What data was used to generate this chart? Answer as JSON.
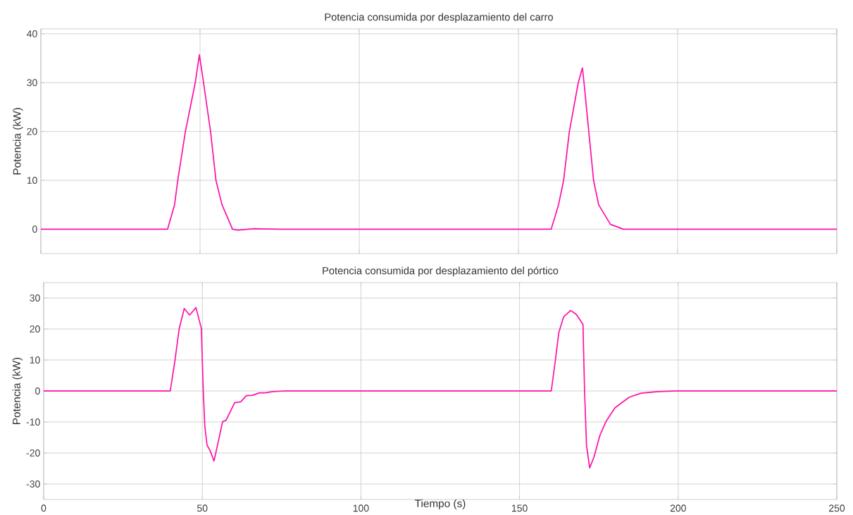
{
  "chart_data": [
    {
      "type": "line",
      "title": "Potencia consumida por desplazamiento del carro",
      "ylabel": "Potencia (kW)",
      "xlim": [
        0,
        250
      ],
      "xticks": [
        0,
        50,
        100,
        150,
        200,
        250
      ],
      "ylim": [
        -5,
        41
      ],
      "yticks": [
        0,
        10,
        20,
        30,
        40
      ],
      "grid": true,
      "tick_labels": "y",
      "series": [
        {
          "color": "#ff11aa",
          "x": [
            0,
            39.8,
            42,
            43,
            45.4,
            48.5,
            49.8,
            51.1,
            53.3,
            55,
            56.9,
            60.2,
            62,
            67,
            75,
            160.3,
            162.6,
            164.2,
            166.0,
            168.8,
            170.1,
            170.6,
            172.1,
            173.6,
            175.2,
            178.9,
            183,
            250
          ],
          "values": [
            0,
            0,
            5,
            10,
            20,
            30,
            35.7,
            30,
            20,
            10,
            5,
            0,
            -0.2,
            0.1,
            0,
            0,
            5,
            10,
            20,
            30,
            33.0,
            30,
            20,
            10,
            5,
            1,
            0,
            0
          ]
        }
      ]
    },
    {
      "type": "line",
      "title": "Potencia consumida por desplazamiento del pórtico",
      "xlabel": "Tiempo (s)",
      "ylabel": "Potencia (kW)",
      "xlim": [
        0,
        250
      ],
      "xticks": [
        0,
        50,
        100,
        150,
        200,
        250
      ],
      "ylim": [
        -35,
        35
      ],
      "yticks": [
        -30,
        -20,
        -10,
        0,
        10,
        20,
        30
      ],
      "grid": true,
      "series": [
        {
          "color": "#ff11aa",
          "x": [
            0,
            39.9,
            41.4,
            42.7,
            44.3,
            46.0,
            48.0,
            49.7,
            50.3,
            50.8,
            51.5,
            52.5,
            53.7,
            55.1,
            56.4,
            57.5,
            60.2,
            62.1,
            63.9,
            65.8,
            68.0,
            69.9,
            72.1,
            75.7,
            160.0,
            161.3,
            162.4,
            163.9,
            166.1,
            167.9,
            170.0,
            170.1,
            170.5,
            171.1,
            172.1,
            173.5,
            175.3,
            177.2,
            180.1,
            184.6,
            188.3,
            193.5,
            199.4,
            250
          ],
          "values": [
            0,
            0,
            10,
            20,
            26.6,
            24.5,
            26.9,
            20.2,
            0,
            -11.4,
            -17.5,
            -19.3,
            -22.6,
            -16.0,
            -9.9,
            -9.4,
            -3.8,
            -3.5,
            -1.5,
            -1.4,
            -0.6,
            -0.6,
            -0.2,
            0,
            0,
            10,
            19.0,
            23.9,
            26.0,
            24.7,
            21.5,
            16.4,
            0,
            -17.5,
            -24.8,
            -21.2,
            -14.4,
            -9.9,
            -5.4,
            -2.0,
            -0.7,
            -0.2,
            0,
            0
          ]
        }
      ]
    }
  ]
}
